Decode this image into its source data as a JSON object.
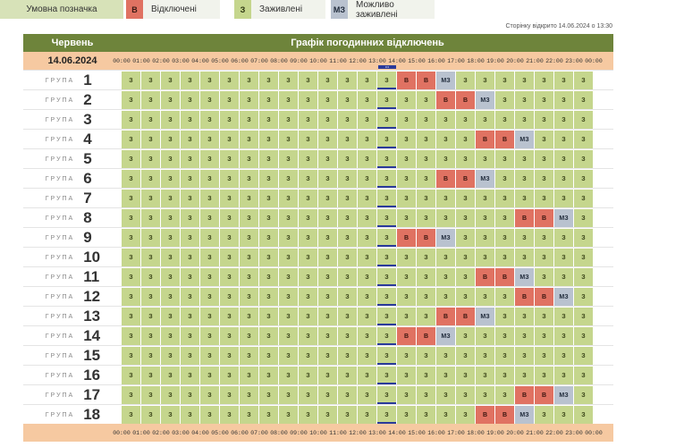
{
  "legend": {
    "title": "Умовна позначка",
    "items": [
      {
        "code": "В",
        "label": "Відключені",
        "cls": "lg-b"
      },
      {
        "code": "З",
        "label": "Заживлені",
        "cls": "lg-z"
      },
      {
        "code": "МЗ",
        "label": "Можливо заживлені",
        "cls": "lg-m"
      }
    ]
  },
  "opened_text": "Сторінку відкрито 14.06.2024 о 13:30",
  "header": {
    "month": "Червень",
    "title": "Графік погодинних відключень"
  },
  "date": "14.06.2024",
  "now_marker": "•••",
  "current_hour_index": 13,
  "group_label": "ГРУПА",
  "time_labels": [
    "00:00",
    "01:00",
    "02:00",
    "03:00",
    "04:00",
    "05:00",
    "06:00",
    "07:00",
    "08:00",
    "09:00",
    "10:00",
    "11:00",
    "12:00",
    "13:00",
    "14:00",
    "15:00",
    "16:00",
    "17:00",
    "18:00",
    "19:00",
    "20:00",
    "21:00",
    "22:00",
    "23:00",
    "00:00"
  ],
  "codes": {
    "z": "З",
    "b": "В",
    "m": "МЗ"
  },
  "groups": [
    {
      "num": "1",
      "b": [
        14,
        15
      ],
      "m": [
        16
      ]
    },
    {
      "num": "2",
      "b": [
        16,
        17
      ],
      "m": [
        18
      ]
    },
    {
      "num": "3",
      "b": [],
      "m": []
    },
    {
      "num": "4",
      "b": [
        18,
        19
      ],
      "m": [
        20
      ]
    },
    {
      "num": "5",
      "b": [],
      "m": []
    },
    {
      "num": "6",
      "b": [
        16,
        17
      ],
      "m": [
        18
      ]
    },
    {
      "num": "7",
      "b": [],
      "m": []
    },
    {
      "num": "8",
      "b": [
        20,
        21
      ],
      "m": [
        22
      ]
    },
    {
      "num": "9",
      "b": [
        14,
        15
      ],
      "m": [
        16
      ]
    },
    {
      "num": "10",
      "b": [],
      "m": []
    },
    {
      "num": "11",
      "b": [
        18,
        19
      ],
      "m": [
        20
      ]
    },
    {
      "num": "12",
      "b": [
        20,
        21
      ],
      "m": [
        22
      ]
    },
    {
      "num": "13",
      "b": [
        16,
        17
      ],
      "m": [
        18
      ]
    },
    {
      "num": "14",
      "b": [
        14,
        15
      ],
      "m": [
        16
      ]
    },
    {
      "num": "15",
      "b": [],
      "m": []
    },
    {
      "num": "16",
      "b": [],
      "m": []
    },
    {
      "num": "17",
      "b": [
        20,
        21
      ],
      "m": [
        22
      ]
    },
    {
      "num": "18",
      "b": [
        18,
        19
      ],
      "m": [
        20
      ]
    }
  ]
}
